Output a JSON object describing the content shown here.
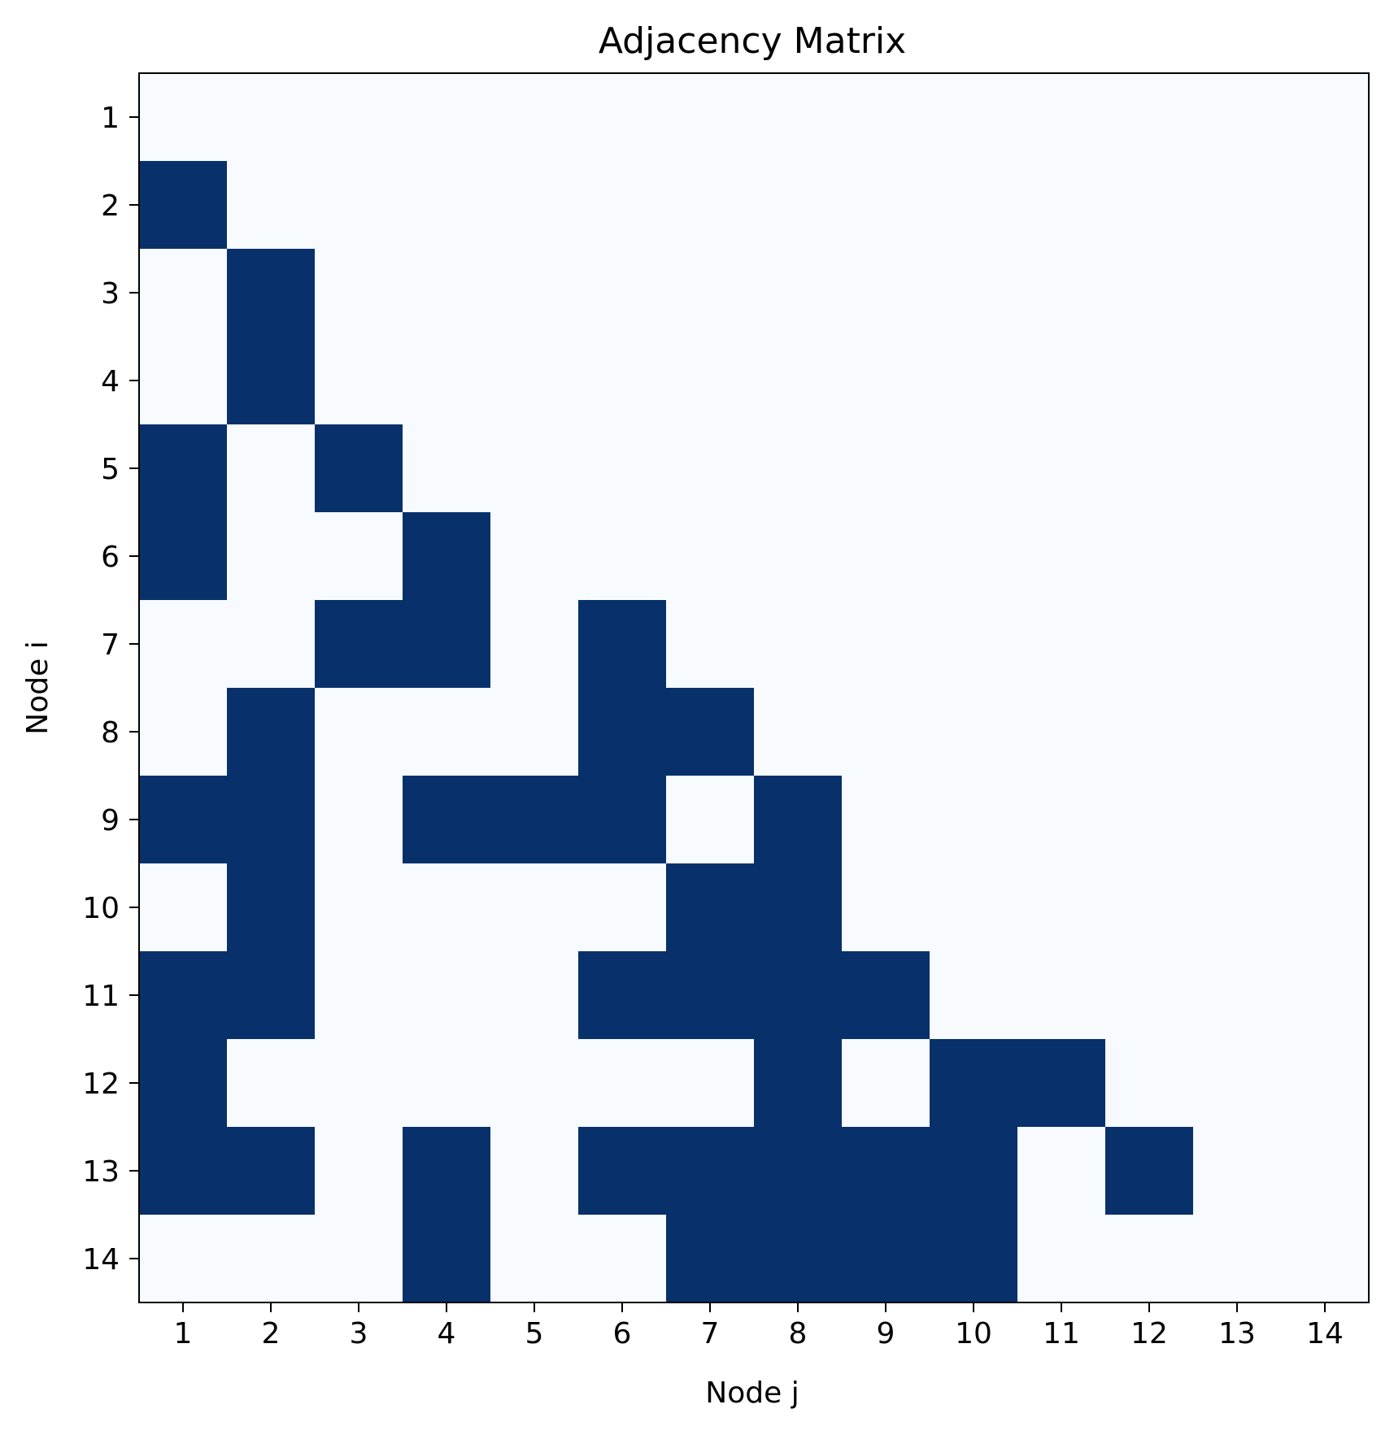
{
  "chart_data": {
    "type": "heatmap",
    "title": "Adjacency Matrix",
    "xlabel": "Node j",
    "ylabel": "Node i",
    "x_ticks": [
      "1",
      "2",
      "3",
      "4",
      "5",
      "6",
      "7",
      "8",
      "9",
      "10",
      "11",
      "12",
      "13",
      "14"
    ],
    "y_ticks": [
      "1",
      "2",
      "3",
      "4",
      "5",
      "6",
      "7",
      "8",
      "9",
      "10",
      "11",
      "12",
      "13",
      "14"
    ],
    "matrix": [
      [
        0,
        0,
        0,
        0,
        0,
        0,
        0,
        0,
        0,
        0,
        0,
        0,
        0,
        0
      ],
      [
        1,
        0,
        0,
        0,
        0,
        0,
        0,
        0,
        0,
        0,
        0,
        0,
        0,
        0
      ],
      [
        0,
        1,
        0,
        0,
        0,
        0,
        0,
        0,
        0,
        0,
        0,
        0,
        0,
        0
      ],
      [
        0,
        1,
        0,
        0,
        0,
        0,
        0,
        0,
        0,
        0,
        0,
        0,
        0,
        0
      ],
      [
        1,
        0,
        1,
        0,
        0,
        0,
        0,
        0,
        0,
        0,
        0,
        0,
        0,
        0
      ],
      [
        1,
        0,
        0,
        1,
        0,
        0,
        0,
        0,
        0,
        0,
        0,
        0,
        0,
        0
      ],
      [
        0,
        0,
        1,
        1,
        0,
        1,
        0,
        0,
        0,
        0,
        0,
        0,
        0,
        0
      ],
      [
        0,
        1,
        0,
        0,
        0,
        1,
        1,
        0,
        0,
        0,
        0,
        0,
        0,
        0
      ],
      [
        1,
        1,
        0,
        1,
        1,
        1,
        0,
        1,
        0,
        0,
        0,
        0,
        0,
        0
      ],
      [
        0,
        1,
        0,
        0,
        0,
        0,
        1,
        1,
        0,
        0,
        0,
        0,
        0,
        0
      ],
      [
        1,
        1,
        0,
        0,
        0,
        1,
        1,
        1,
        1,
        0,
        0,
        0,
        0,
        0
      ],
      [
        1,
        0,
        0,
        0,
        0,
        0,
        0,
        1,
        0,
        1,
        1,
        0,
        0,
        0
      ],
      [
        1,
        1,
        0,
        1,
        0,
        1,
        1,
        1,
        1,
        1,
        0,
        1,
        0,
        0
      ],
      [
        0,
        0,
        0,
        1,
        0,
        0,
        1,
        1,
        1,
        1,
        0,
        0,
        0,
        0
      ]
    ],
    "colormap": "Blues",
    "colors": {
      "zero": "#f7fbff",
      "one": "#08306b"
    },
    "value_range": [
      0,
      1
    ],
    "grid": false
  }
}
